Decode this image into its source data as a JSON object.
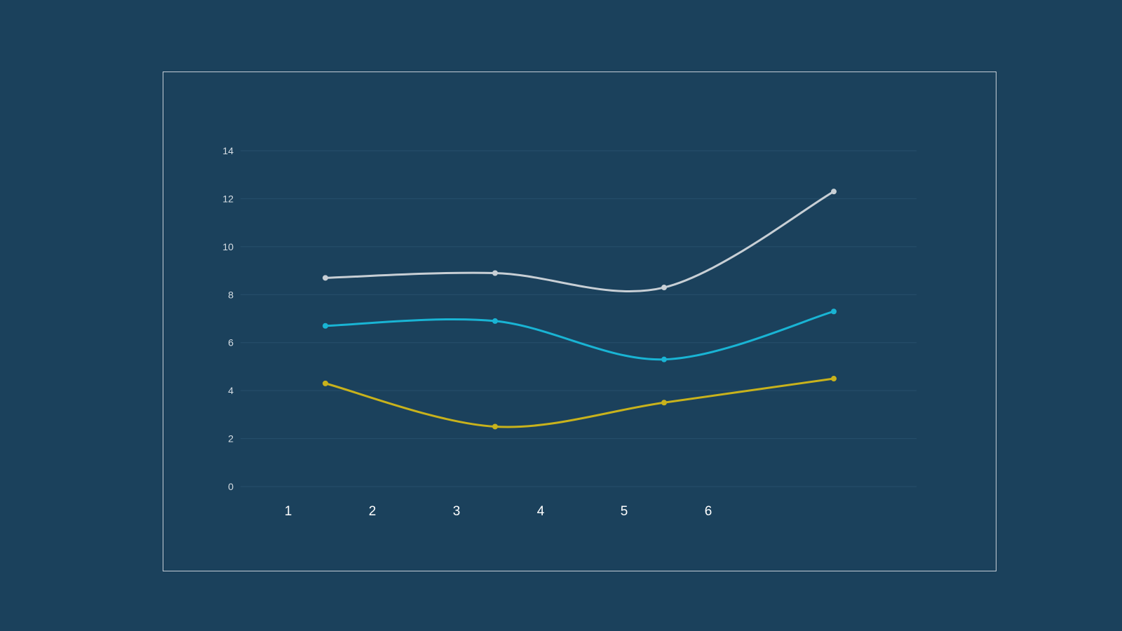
{
  "chart_data": {
    "type": "line",
    "title": "",
    "xlabel": "",
    "ylabel": "",
    "x_tick_labels": [
      "1",
      "2",
      "3",
      "4",
      "5",
      "6"
    ],
    "y_ticks": [
      0,
      2,
      4,
      6,
      8,
      10,
      12,
      14
    ],
    "ylim": [
      0,
      14
    ],
    "grid": true,
    "smooth": true,
    "series": [
      {
        "color": "#c8cfd5",
        "values": [
          8.7,
          8.9,
          8.3,
          12.3
        ]
      },
      {
        "color": "#19b4d4",
        "values": [
          6.7,
          6.9,
          5.3,
          7.3
        ]
      },
      {
        "color": "#c8b21c",
        "values": [
          4.3,
          2.5,
          3.5,
          4.5
        ]
      }
    ]
  },
  "colors": {
    "background": "#1b415c",
    "frame": "#c5ced6",
    "grid": "#27506c"
  }
}
